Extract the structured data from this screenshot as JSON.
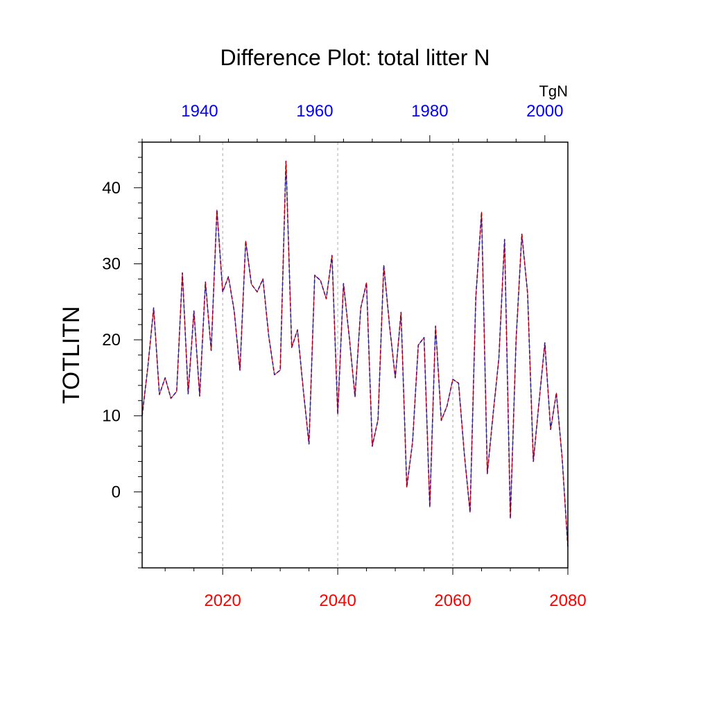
{
  "chart_data": {
    "type": "line",
    "title": "Difference Plot: total litter N",
    "ylabel": "TOTLITN",
    "units": "TgN",
    "ylim": [
      -10,
      46
    ],
    "yticks": [
      0,
      10,
      20,
      30,
      40
    ],
    "grid": "vertical-dashed",
    "x_bottom": {
      "range": [
        2006,
        2080
      ],
      "ticks": [
        2020,
        2040,
        2060,
        2080
      ],
      "color": "#ff0000"
    },
    "x_top": {
      "range": [
        1930,
        2004
      ],
      "ticks": [
        1940,
        1960,
        1980,
        2000
      ],
      "color": "#0000ff"
    },
    "x": [
      2006,
      2007,
      2008,
      2009,
      2010,
      2011,
      2012,
      2013,
      2014,
      2015,
      2016,
      2017,
      2018,
      2019,
      2020,
      2021,
      2022,
      2023,
      2024,
      2025,
      2026,
      2027,
      2028,
      2029,
      2030,
      2031,
      2032,
      2033,
      2034,
      2035,
      2036,
      2037,
      2038,
      2039,
      2040,
      2041,
      2042,
      2043,
      2044,
      2045,
      2046,
      2047,
      2048,
      2049,
      2050,
      2051,
      2052,
      2053,
      2054,
      2055,
      2056,
      2057,
      2058,
      2059,
      2060,
      2061,
      2062,
      2063,
      2064,
      2065,
      2066,
      2067,
      2068,
      2069,
      2070,
      2071,
      2072,
      2073,
      2074,
      2075,
      2076,
      2077,
      2078,
      2079,
      2080
    ],
    "series": [
      {
        "color": "#0000ff",
        "dash": "dashed",
        "values": [
          10.0,
          16.5,
          24.2,
          12.8,
          15.0,
          12.3,
          13.2,
          28.8,
          12.9,
          23.8,
          12.6,
          27.6,
          18.6,
          37.1,
          26.3,
          28.3,
          23.8,
          16.0,
          33.0,
          27.3,
          26.3,
          28.0,
          20.5,
          15.4,
          16.0,
          43.5,
          19.0,
          21.3,
          13.5,
          6.3,
          28.5,
          27.8,
          25.4,
          31.1,
          10.2,
          27.4,
          20.4,
          12.5,
          24.2,
          27.5,
          6.0,
          9.5,
          29.8,
          21.9,
          15.0,
          23.6,
          0.6,
          6.5,
          19.3,
          20.3,
          -2.0,
          21.8,
          9.4,
          11.3,
          14.8,
          14.3,
          5.0,
          -2.7,
          25.6,
          36.8,
          2.4,
          10.2,
          17.5,
          33.2,
          -3.5,
          20.0,
          33.9,
          26.1,
          4.0,
          11.9,
          19.6,
          8.2,
          13.0,
          4.5,
          -7.3
        ]
      },
      {
        "color": "#b00000",
        "dash": "solid",
        "values": [
          10.0,
          16.5,
          24.2,
          12.8,
          15.0,
          12.3,
          13.2,
          28.8,
          12.9,
          23.8,
          12.6,
          27.6,
          18.6,
          37.1,
          26.3,
          28.3,
          23.8,
          16.0,
          33.0,
          27.3,
          26.3,
          28.0,
          20.5,
          15.4,
          16.0,
          43.5,
          19.0,
          21.3,
          13.5,
          6.3,
          28.5,
          27.8,
          25.4,
          31.1,
          10.2,
          27.4,
          20.4,
          12.5,
          24.2,
          27.5,
          6.0,
          9.5,
          29.8,
          21.9,
          15.0,
          23.6,
          0.6,
          6.5,
          19.3,
          20.3,
          -2.0,
          21.8,
          9.4,
          11.3,
          14.8,
          14.3,
          5.0,
          -2.7,
          25.6,
          36.8,
          2.4,
          10.2,
          17.5,
          33.2,
          -3.5,
          20.0,
          33.9,
          26.1,
          4.0,
          11.9,
          19.6,
          8.2,
          13.0,
          4.5,
          -7.3
        ]
      }
    ]
  }
}
